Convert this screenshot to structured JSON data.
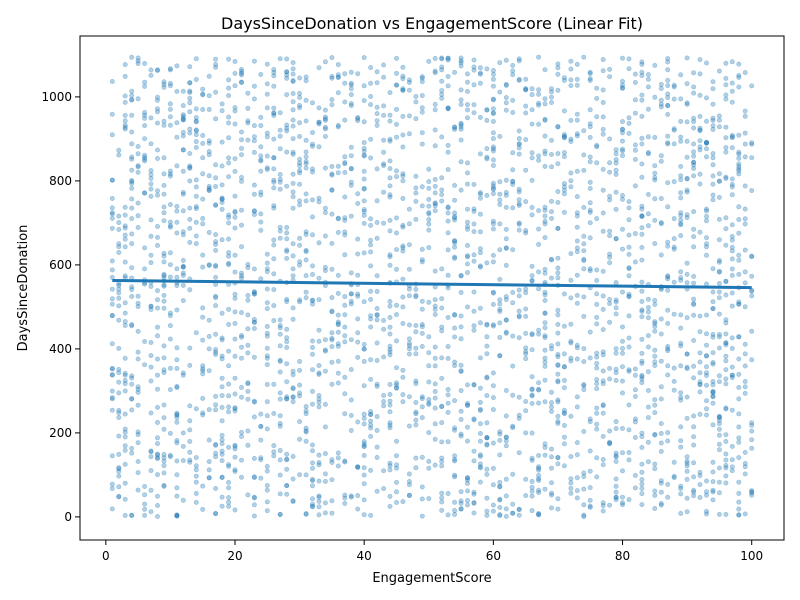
{
  "chart_data": {
    "type": "scatter",
    "title": "DaysSinceDonation vs EngagementScore (Linear Fit)",
    "xlabel": "EngagementScore",
    "ylabel": "DaysSinceDonation",
    "xlim": [
      -4,
      105
    ],
    "ylim": [
      -55,
      1145
    ],
    "xticks": [
      0,
      20,
      40,
      60,
      80,
      100
    ],
    "yticks": [
      0,
      200,
      400,
      600,
      800,
      1000
    ],
    "grid": false,
    "point_color": "#1f77b4",
    "line_color": "#1f77b4",
    "point_alpha": 0.35,
    "n_points": 3000,
    "x_range": [
      1,
      100
    ],
    "y_range": [
      0,
      1095
    ],
    "fit": {
      "x": [
        1,
        100
      ],
      "y": [
        563,
        546
      ]
    }
  }
}
